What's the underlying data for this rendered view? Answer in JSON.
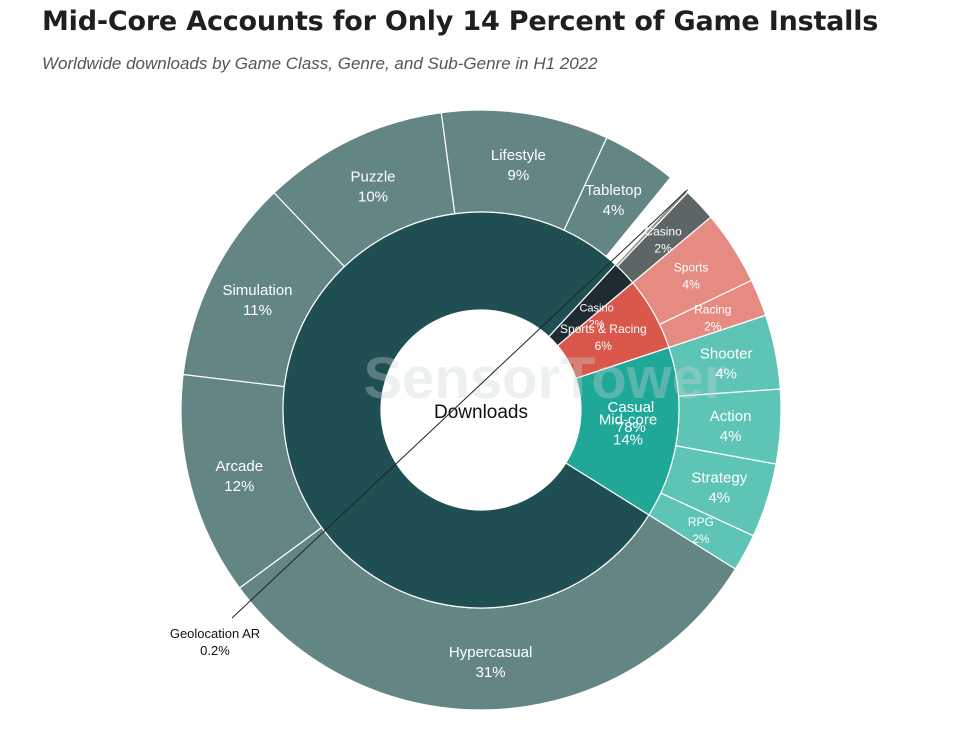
{
  "header": {
    "title": "Mid-Core Accounts for Only 14 Percent of Game Installs",
    "subtitle": "Worldwide downloads by Game Class, Genre, and Sub-Genre in H1 2022"
  },
  "watermark": "SensorTower",
  "chart_data": {
    "type": "sunburst",
    "center_label": "Downloads",
    "colors": {
      "casual_inner": "#1f4f52",
      "casual_outer": "#638584",
      "midcore_inner": "#1fa797",
      "midcore_outer": "#5ec4b6",
      "sports_inner": "#d9584b",
      "sports_outer": "#e68b82",
      "casino_inner": "#1f2b30",
      "casino_outer": "#5d6567",
      "geo_outer": "#8a8f90"
    },
    "classes": [
      {
        "name": "Casual",
        "label": "78%",
        "value": 78,
        "color_key": "casual",
        "genres": [
          {
            "name": "Hypercasual",
            "label": "31%",
            "value": 31
          },
          {
            "name": "Arcade",
            "label": "12%",
            "value": 12
          },
          {
            "name": "Simulation",
            "label": "11%",
            "value": 11
          },
          {
            "name": "Puzzle",
            "label": "10%",
            "value": 10
          },
          {
            "name": "Lifestyle",
            "label": "9%",
            "value": 9
          },
          {
            "name": "Tabletop",
            "label": "4%",
            "value": 4
          }
        ]
      },
      {
        "name": "Casino",
        "label": "2%",
        "value": 2,
        "color_key": "casino",
        "genres": [
          {
            "name": "Geolocation AR",
            "label": "0.2%",
            "value": 0.2,
            "external": true
          },
          {
            "name": "Casino",
            "label": "2%",
            "value": 1.8
          }
        ]
      },
      {
        "name": "Sports & Racing",
        "label": "6%",
        "value": 6,
        "color_key": "sports",
        "genres": [
          {
            "name": "Sports",
            "label": "4%",
            "value": 4
          },
          {
            "name": "Racing",
            "label": "2%",
            "value": 2
          }
        ]
      },
      {
        "name": "Mid-core",
        "label": "14%",
        "value": 14,
        "color_key": "midcore",
        "genres": [
          {
            "name": "Shooter",
            "label": "4%",
            "value": 4
          },
          {
            "name": "Action",
            "label": "4%",
            "value": 4
          },
          {
            "name": "Strategy",
            "label": "4%",
            "value": 4
          },
          {
            "name": "RPG",
            "label": "2%",
            "value": 2
          }
        ]
      }
    ]
  }
}
